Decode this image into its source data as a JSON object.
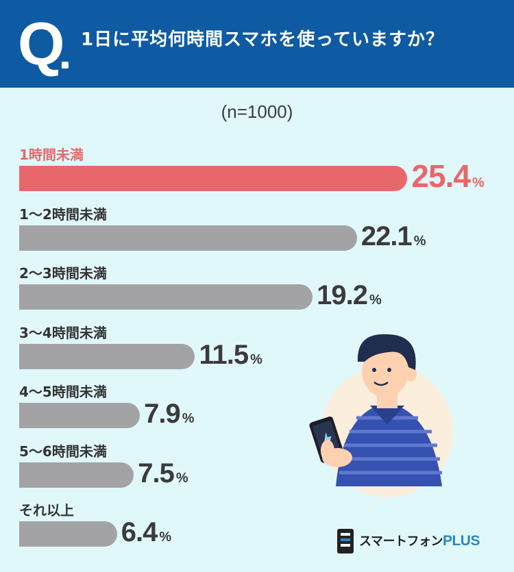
{
  "header": {
    "q_letter": "Q",
    "question": "1日に平均何時間スマホを使っていますか？"
  },
  "sample_size": "(n=1000)",
  "chart_data": {
    "type": "bar",
    "orientation": "horizontal",
    "title": "1日に平均何時間スマホを使っていますか？",
    "subtitle": "(n=1000)",
    "unit": "%",
    "categories": [
      "1時間未満",
      "1〜2時間未満",
      "2〜3時間未満",
      "3〜4時間未満",
      "4〜5時間未満",
      "5〜6時間未満",
      "それ以上"
    ],
    "values": [
      25.4,
      22.1,
      19.2,
      11.5,
      7.9,
      7.5,
      6.4
    ],
    "highlight_index": 0,
    "colors": {
      "highlight": "#e8676b",
      "default": "#a3a3a6"
    }
  },
  "logo": {
    "name": "スマートフォン",
    "suffix": "PLUS"
  },
  "colors": {
    "header": "#0f5ba3",
    "background": "#e1f8fb",
    "accent": "#e8676b"
  }
}
